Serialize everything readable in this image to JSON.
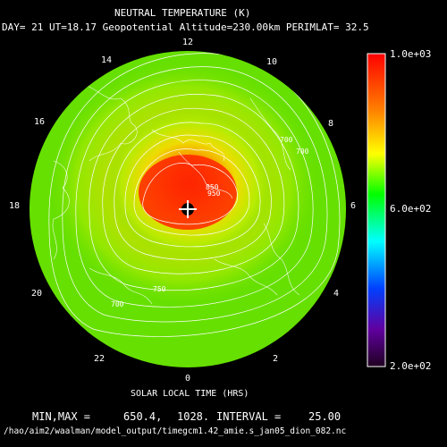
{
  "title": "NEUTRAL TEMPERATURE (K)",
  "subtitle": "DAY= 21 UT=18.17 Geopotential Altitude=230.00km PERIMLAT= 32.5",
  "local_time_labels": [
    "12",
    "14",
    "16",
    "18",
    "20",
    "22",
    "0",
    "2",
    "4",
    "6",
    "8",
    "10"
  ],
  "contour_labels": [
    "700",
    "700",
    "750",
    "850",
    "950",
    "700"
  ],
  "colorbar": {
    "max": "1.0e+03",
    "mid": "6.0e+02",
    "min": "2.0e+02"
  },
  "xlabel": "SOLAR LOCAL TIME (HRS)",
  "minmax": {
    "label": "MIN,MAX =",
    "min": "650.4,",
    "max": "1028.",
    "interval_label": "INTERVAL =",
    "interval": "25.00"
  },
  "file_path": "/hao/aim2/waalman/model_output/timegcm1.42_amie.s_jan05_dion_082.nc",
  "colors": {
    "background": "#000000",
    "foreground": "#ffffff",
    "field_low": "#66e000",
    "field_high": "#ff2a00"
  }
}
